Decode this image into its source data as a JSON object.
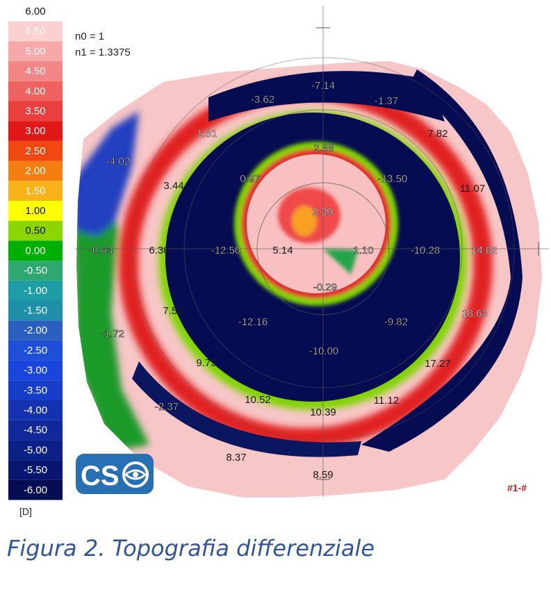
{
  "chart_data": {
    "type": "heatmap",
    "refraction": {
      "n0_text": "n0 = 1",
      "n1_text": "n1 = 1.3375"
    },
    "color_scale": {
      "unit": "[D]",
      "steps": [
        {
          "value": "6.00",
          "color": "#ffffff"
        },
        {
          "value": "5.50",
          "color": "#fad0d0"
        },
        {
          "value": "5.00",
          "color": "#f7a8a8"
        },
        {
          "value": "4.50",
          "color": "#f28585"
        },
        {
          "value": "4.00",
          "color": "#ee6262"
        },
        {
          "value": "3.50",
          "color": "#ea3f3f"
        },
        {
          "value": "3.00",
          "color": "#e01818"
        },
        {
          "value": "2.50",
          "color": "#f04810"
        },
        {
          "value": "2.00",
          "color": "#f57e12"
        },
        {
          "value": "1.50",
          "color": "#fab21a"
        },
        {
          "value": "1.00",
          "color": "#ffff00"
        },
        {
          "value": "0.50",
          "color": "#8cd600"
        },
        {
          "value": "0.00",
          "color": "#00b000"
        },
        {
          "value": "-0.50",
          "color": "#2ea870"
        },
        {
          "value": "-1.00",
          "color": "#1f9da5"
        },
        {
          "value": "-1.50",
          "color": "#1f90a8"
        },
        {
          "value": "-2.00",
          "color": "#2a5fc0"
        },
        {
          "value": "-2.50",
          "color": "#1f4fd6"
        },
        {
          "value": "-3.00",
          "color": "#1a45dc"
        },
        {
          "value": "-3.50",
          "color": "#173cc8"
        },
        {
          "value": "-4.00",
          "color": "#1432b0"
        },
        {
          "value": "-4.50",
          "color": "#10289a"
        },
        {
          "value": "-5.00",
          "color": "#0c2085"
        },
        {
          "value": "-5.50",
          "color": "#081670"
        },
        {
          "value": "-6.00",
          "color": "#060c52"
        }
      ]
    },
    "values": [
      {
        "label": "-7.14",
        "style": "dark"
      },
      {
        "label": "-3.62",
        "style": "dark"
      },
      {
        "label": "-1.37",
        "style": "dark"
      },
      {
        "label": "1.81",
        "style": "light"
      },
      {
        "label": "7.82",
        "style": "plain"
      },
      {
        "label": "-4.02",
        "style": "dark"
      },
      {
        "label": "2.88",
        "style": "dark"
      },
      {
        "label": "0.97",
        "style": "dark"
      },
      {
        "label": "-13.50",
        "style": "dark"
      },
      {
        "label": "3.44",
        "style": "plain"
      },
      {
        "label": "11.07",
        "style": "plain"
      },
      {
        "label": "2.39",
        "style": "light"
      },
      {
        "label": "-0.63",
        "style": "dark"
      },
      {
        "label": "6.30",
        "style": "plain"
      },
      {
        "label": "-12.50",
        "style": "dark"
      },
      {
        "label": "5.14",
        "style": "plain"
      },
      {
        "label": "1.10",
        "style": "dark"
      },
      {
        "label": "-10.28",
        "style": "dark"
      },
      {
        "label": "14.82",
        "style": "light"
      },
      {
        "label": "-0.29",
        "style": "dark"
      },
      {
        "label": "7.53",
        "style": "plain"
      },
      {
        "label": "-12.16",
        "style": "dark"
      },
      {
        "label": "-9.82",
        "style": "dark"
      },
      {
        "label": "18.63",
        "style": "light"
      },
      {
        "label": "-1.72",
        "style": "dark"
      },
      {
        "label": "-10.00",
        "style": "dark"
      },
      {
        "label": "9.73",
        "style": "plain"
      },
      {
        "label": "17.27",
        "style": "plain"
      },
      {
        "label": "10.52",
        "style": "plain"
      },
      {
        "label": "10.39",
        "style": "plain"
      },
      {
        "label": "11.12",
        "style": "plain"
      },
      {
        "label": "-2.37",
        "style": "dark"
      },
      {
        "label": "8.37",
        "style": "plain"
      },
      {
        "label": "8.59",
        "style": "plain"
      }
    ]
  },
  "logo": {
    "text": "CS"
  },
  "map_id": "#1-#",
  "caption": "Figura 2. Topografia differenziale"
}
